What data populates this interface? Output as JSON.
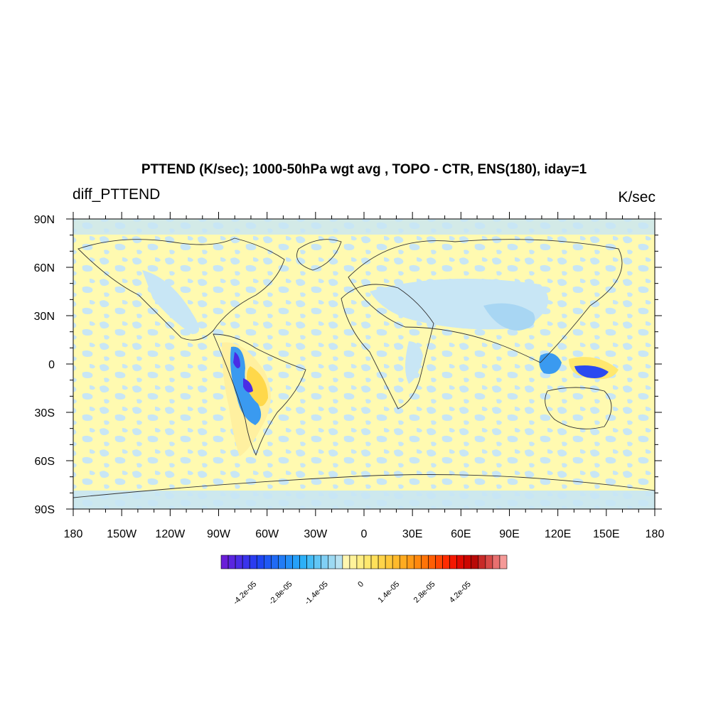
{
  "header": {
    "title": "PTTEND (K/sec); 1000-50hPa wgt avg , TOPO - CTR, ENS(180), iday=1",
    "left_string": "diff_PTTEND",
    "right_string": "K/sec"
  },
  "map": {
    "projection": "cylindrical equidistant",
    "lon_range": [
      -180,
      180
    ],
    "lat_range": [
      -90,
      90
    ],
    "lon_tick_labels": [
      "180",
      "150W",
      "120W",
      "90W",
      "60W",
      "30W",
      "0",
      "30E",
      "60E",
      "90E",
      "120E",
      "150E",
      "180"
    ],
    "lat_tick_labels": [
      "90N",
      "60N",
      "30N",
      "0",
      "30S",
      "60S",
      "90S"
    ],
    "background_field": "weak positive (light yellow) with scattered weak negative (light blue) patches",
    "colors": {
      "weak_positive": "#fffab0",
      "weak_negative": "#c8e6f5",
      "land_outline": "#333333"
    },
    "features": [
      {
        "name": "Andes negative maximum",
        "lon": -75,
        "lat": -15,
        "sign": "negative",
        "colors": [
          "#7a2ee0",
          "#2a4af0",
          "#3a9af0"
        ]
      },
      {
        "name": "Altiplano positive lobe",
        "lon": -65,
        "lat": -15,
        "sign": "positive",
        "colors": [
          "#ffd84a",
          "#ffea80"
        ]
      },
      {
        "name": "New Guinea negative maximum",
        "lon": 142,
        "lat": -5,
        "sign": "negative",
        "colors": [
          "#2a4af0",
          "#3a9af0"
        ]
      },
      {
        "name": "Borneo negative",
        "lon": 115,
        "lat": 0,
        "sign": "negative",
        "colors": [
          "#3a9af0",
          "#7ec4f5"
        ]
      },
      {
        "name": "Tibet/Himalaya negative",
        "lon": 85,
        "lat": 32,
        "sign": "negative",
        "colors": [
          "#7ec4f5",
          "#b0dcf5"
        ]
      },
      {
        "name": "Rocky Mountains negative",
        "lon": -115,
        "lat": 45,
        "sign": "negative",
        "colors": [
          "#9fd2f5"
        ]
      },
      {
        "name": "East Africa negative",
        "lon": 37,
        "lat": 0,
        "sign": "negative",
        "colors": [
          "#9fd2f5"
        ]
      }
    ]
  },
  "colorbar": {
    "orientation": "horizontal",
    "range": [
      -5.6e-05,
      5.6e-05
    ],
    "labels": [
      "-4.2e-05",
      "-2.8e-05",
      "-1.4e-05",
      "0",
      "1.4e-05",
      "2.8e-05",
      "4.2e-05"
    ],
    "colors": [
      "#6a1ed8",
      "#5a25e0",
      "#4a2de6",
      "#3a34ec",
      "#2a3cf0",
      "#1e46f2",
      "#1f58f4",
      "#206af5",
      "#217cf6",
      "#238ef7",
      "#26a0f8",
      "#2cb0f8",
      "#45bcf6",
      "#62c6f5",
      "#80cff4",
      "#9cd9f2",
      "#b8e2f2",
      "#fff6b0",
      "#fff39a",
      "#ffee84",
      "#ffe86e",
      "#ffe05a",
      "#ffd44a",
      "#ffc83a",
      "#ffba2c",
      "#ffab20",
      "#ff9a16",
      "#ff880e",
      "#ff7408",
      "#ff5e04",
      "#ff4602",
      "#ff2c00",
      "#f51800",
      "#e00a00",
      "#cc0600",
      "#b80a08",
      "#c82a28",
      "#d84a48",
      "#e87070",
      "#f59a98"
    ]
  }
}
